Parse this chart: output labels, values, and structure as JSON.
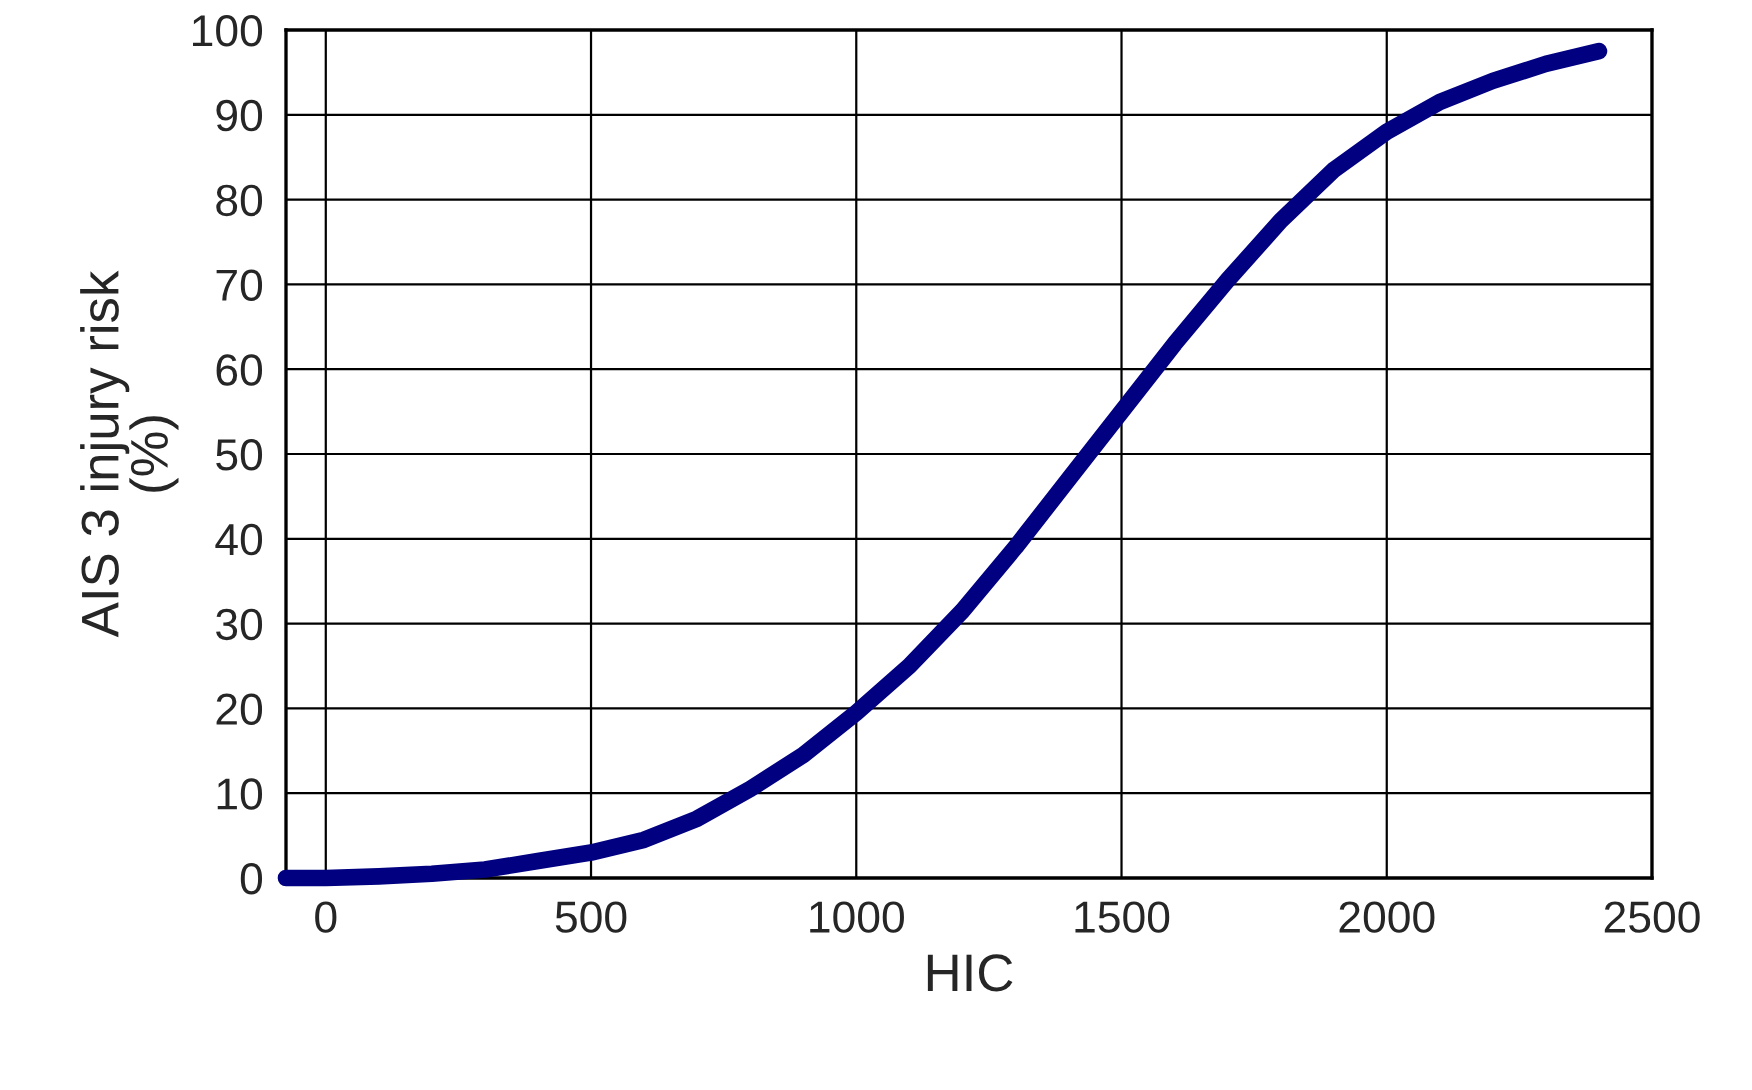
{
  "chart_data": {
    "type": "line",
    "xlabel": "HIC",
    "ylabel": "AIS 3 injury risk\n(%)",
    "x": [
      -75,
      0,
      100,
      200,
      300,
      400,
      500,
      600,
      700,
      800,
      900,
      1000,
      1100,
      1200,
      1300,
      1400,
      1500,
      1600,
      1700,
      1800,
      1900,
      2000,
      2100,
      2200,
      2300,
      2400
    ],
    "series": [
      {
        "color": "#000080",
        "values": [
          0,
          0,
          0.2,
          0.5,
          1,
          2,
          3,
          4.5,
          7,
          10.5,
          14.5,
          19.5,
          25,
          31.5,
          39,
          47,
          55,
          63,
          70.5,
          77.5,
          83.5,
          88,
          91.5,
          94,
          96,
          97.5
        ]
      }
    ],
    "xlim": [
      -75,
      2500
    ],
    "xticks": [
      0,
      500,
      1000,
      1500,
      2000,
      2500
    ],
    "ylim": [
      0,
      100
    ],
    "yticks": [
      0,
      10,
      20,
      30,
      40,
      50,
      60,
      70,
      80,
      90,
      100
    ],
    "grid": true,
    "marker": "none",
    "line_style": "solid"
  }
}
